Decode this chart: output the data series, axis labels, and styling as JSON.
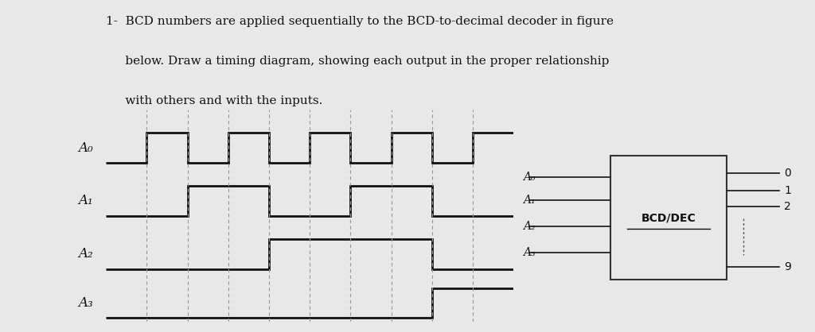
{
  "title_line1": "1-  BCD numbers are applied sequentially to the BCD-to-decimal decoder in figure",
  "title_line2": "     below. Draw a timing diagram, showing each output in the proper relationship",
  "title_line3": "     with others and with the inputs.",
  "bg_color": "#e8e8e8",
  "signal_color": "#111111",
  "dashed_color": "#999999",
  "text_color": "#111111",
  "bcd_values": [
    0,
    1,
    2,
    3,
    4,
    5,
    6,
    7,
    8,
    9
  ],
  "signal_labels": [
    "A₀",
    "A₁",
    "A₂",
    "A₃"
  ],
  "decoder_inputs": [
    "A₀",
    "A₁",
    "A₂",
    "A₃"
  ],
  "decoder_outputs": [
    "0",
    "1",
    "2",
    "9"
  ],
  "decoder_label": "BCD/DEC"
}
